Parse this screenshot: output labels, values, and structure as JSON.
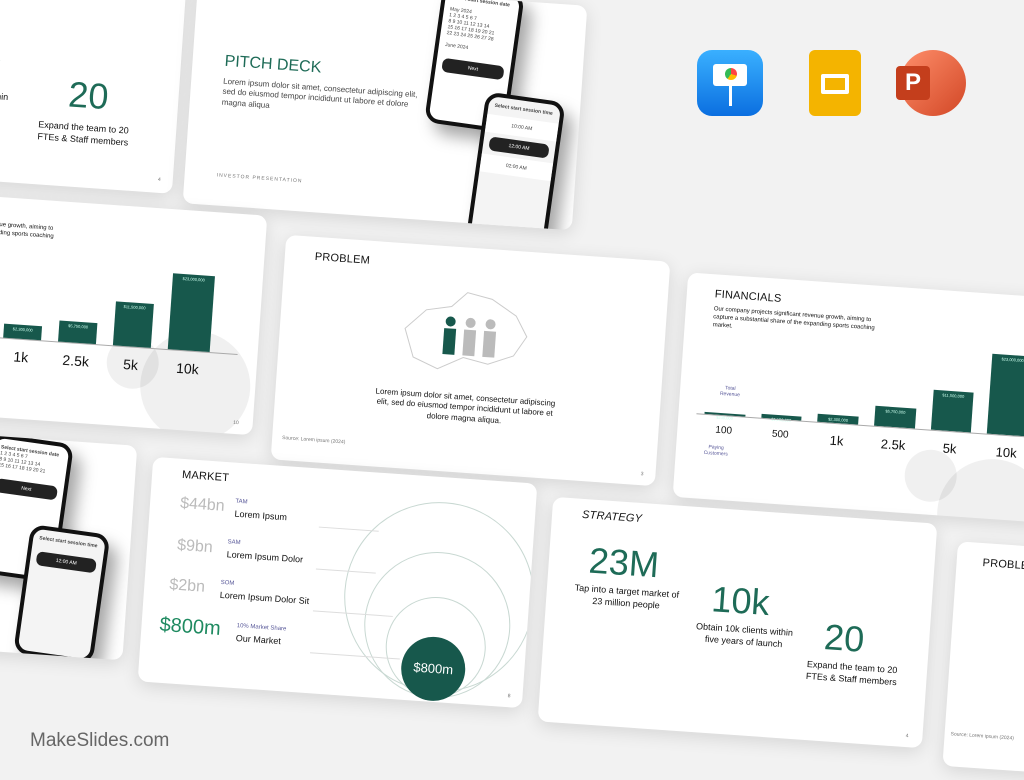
{
  "apps": [
    {
      "name": "keynote-icon",
      "color": "#1a8cf0"
    },
    {
      "name": "google-slides-icon",
      "color": "#f4b400"
    },
    {
      "name": "powerpoint-icon",
      "color": "#d24726"
    }
  ],
  "watermark": "MakeSlides.com",
  "strategy_partial": {
    "big1": "k",
    "text1": "s within\nunch",
    "big2": "20",
    "text2": "Expand the team to 20 FTEs & Staff members",
    "page": "4"
  },
  "pitch": {
    "title": "PITCH DECK",
    "body": "Lorem ipsum dolor sit amet, consectetur adipiscing elit, sed do eiusmod tempor incididunt ut labore et dolore magna aliqua",
    "footer": "INVESTOR PRESENTATION",
    "phone1_title": "Select start session date",
    "month1": "May 2024",
    "month2": "June 2024",
    "next": "Next",
    "phone2_title": "Select start session time",
    "times": [
      "10:00 AM",
      "12:00 AM",
      "02:00 AM"
    ]
  },
  "fin_partial": {
    "text": "nue growth, aiming to\nnding sports coaching",
    "bars": [
      {
        "value": "$2,300,000",
        "label": "1k"
      },
      {
        "value": "$5,750,000",
        "label": "2.5k"
      },
      {
        "value": "$11,500,000",
        "label": "5k"
      },
      {
        "value": "$23,000,000",
        "label": "10k"
      }
    ],
    "page": "10"
  },
  "problem": {
    "title": "PROBLEM",
    "body": "Lorem ipsum dolor sit amet, consectetur adipiscing elit, sed do eiusmod tempor incididunt ut labore et dolore magna aliqua.",
    "source": "Source: Lorem ipsum (2024)",
    "page": "3"
  },
  "financials": {
    "title": "FINANCIALS",
    "body": "Our company projects significant revenue growth, aiming to capture a substantial share of the expanding sports coaching market.",
    "revenue_label": "Total Revenue",
    "customers_label": "Paying Customers",
    "chart_data": {
      "type": "bar",
      "categories": [
        "100",
        "500",
        "1k",
        "2.5k",
        "5k",
        "10k"
      ],
      "values": [
        230000,
        1150000,
        2300000,
        5750000,
        11500000,
        23000000
      ],
      "value_labels": [
        "$230,000",
        "$1,150,000",
        "$2,300,000",
        "$5,750,000",
        "$11,500,000",
        "$23,000,000"
      ],
      "color": "#17584c"
    }
  },
  "market": {
    "title": "MARKET",
    "rows": [
      {
        "value": "$44bn",
        "tag": "TAM",
        "label": "Lorem Ipsum"
      },
      {
        "value": "$9bn",
        "tag": "SAM",
        "label": "Lorem Ipsum Dolor"
      },
      {
        "value": "$2bn",
        "tag": "SOM",
        "label": "Lorem Ipsum Dolor Sit"
      },
      {
        "value": "$800m",
        "tag": "10% Market Share",
        "label": "Our Market"
      }
    ],
    "circle": "$800m",
    "page": "8"
  },
  "strategy": {
    "title": "STRATEGY",
    "items": [
      {
        "big": "23M",
        "text": "Tap into a target market of 23 million people"
      },
      {
        "big": "10k",
        "text": "Obtain 10k clients within five years of launch"
      },
      {
        "big": "20",
        "text": "Expand the team to 20 FTEs & Staff members"
      }
    ],
    "page": "4"
  },
  "problem_partial": {
    "title": "PROBLEM",
    "source": "Source: Lorem ipsum (2024)"
  }
}
